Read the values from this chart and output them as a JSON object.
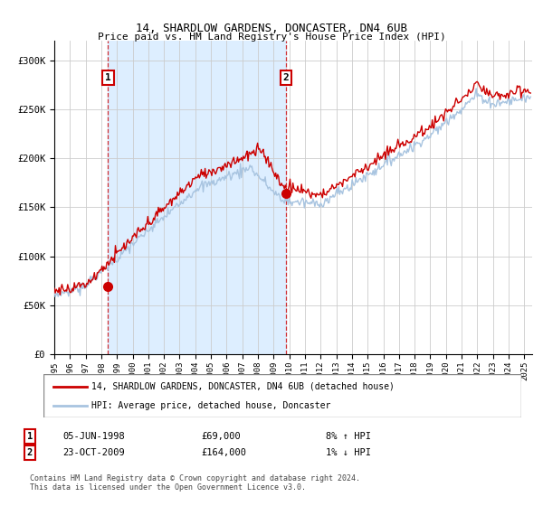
{
  "title": "14, SHARDLOW GARDENS, DONCASTER, DN4 6UB",
  "subtitle": "Price paid vs. HM Land Registry's House Price Index (HPI)",
  "sale1": {
    "date": "05-JUN-1998",
    "price": 69000,
    "hpi_pct": "8% ↑ HPI",
    "x": 1998.43
  },
  "sale2": {
    "date": "23-OCT-2009",
    "price": 164000,
    "hpi_pct": "1% ↓ HPI",
    "x": 2009.8
  },
  "legend_line1": "14, SHARDLOW GARDENS, DONCASTER, DN4 6UB (detached house)",
  "legend_line2": "HPI: Average price, detached house, Doncaster",
  "footnote": "Contains HM Land Registry data © Crown copyright and database right 2024.\nThis data is licensed under the Open Government Licence v3.0.",
  "hpi_color": "#a8c4e0",
  "price_color": "#cc0000",
  "marker_color": "#cc0000",
  "shade_color": "#ddeeff",
  "grid_color": "#cccccc",
  "ylim": [
    0,
    320000
  ],
  "xlim": [
    1995,
    2025.5
  ],
  "yticks": [
    0,
    50000,
    100000,
    150000,
    200000,
    250000,
    300000
  ],
  "xticks": [
    1995,
    1996,
    1997,
    1998,
    1999,
    2000,
    2001,
    2002,
    2003,
    2004,
    2005,
    2006,
    2007,
    2008,
    2009,
    2010,
    2011,
    2012,
    2013,
    2014,
    2015,
    2016,
    2017,
    2018,
    2019,
    2020,
    2021,
    2022,
    2023,
    2024,
    2025
  ]
}
